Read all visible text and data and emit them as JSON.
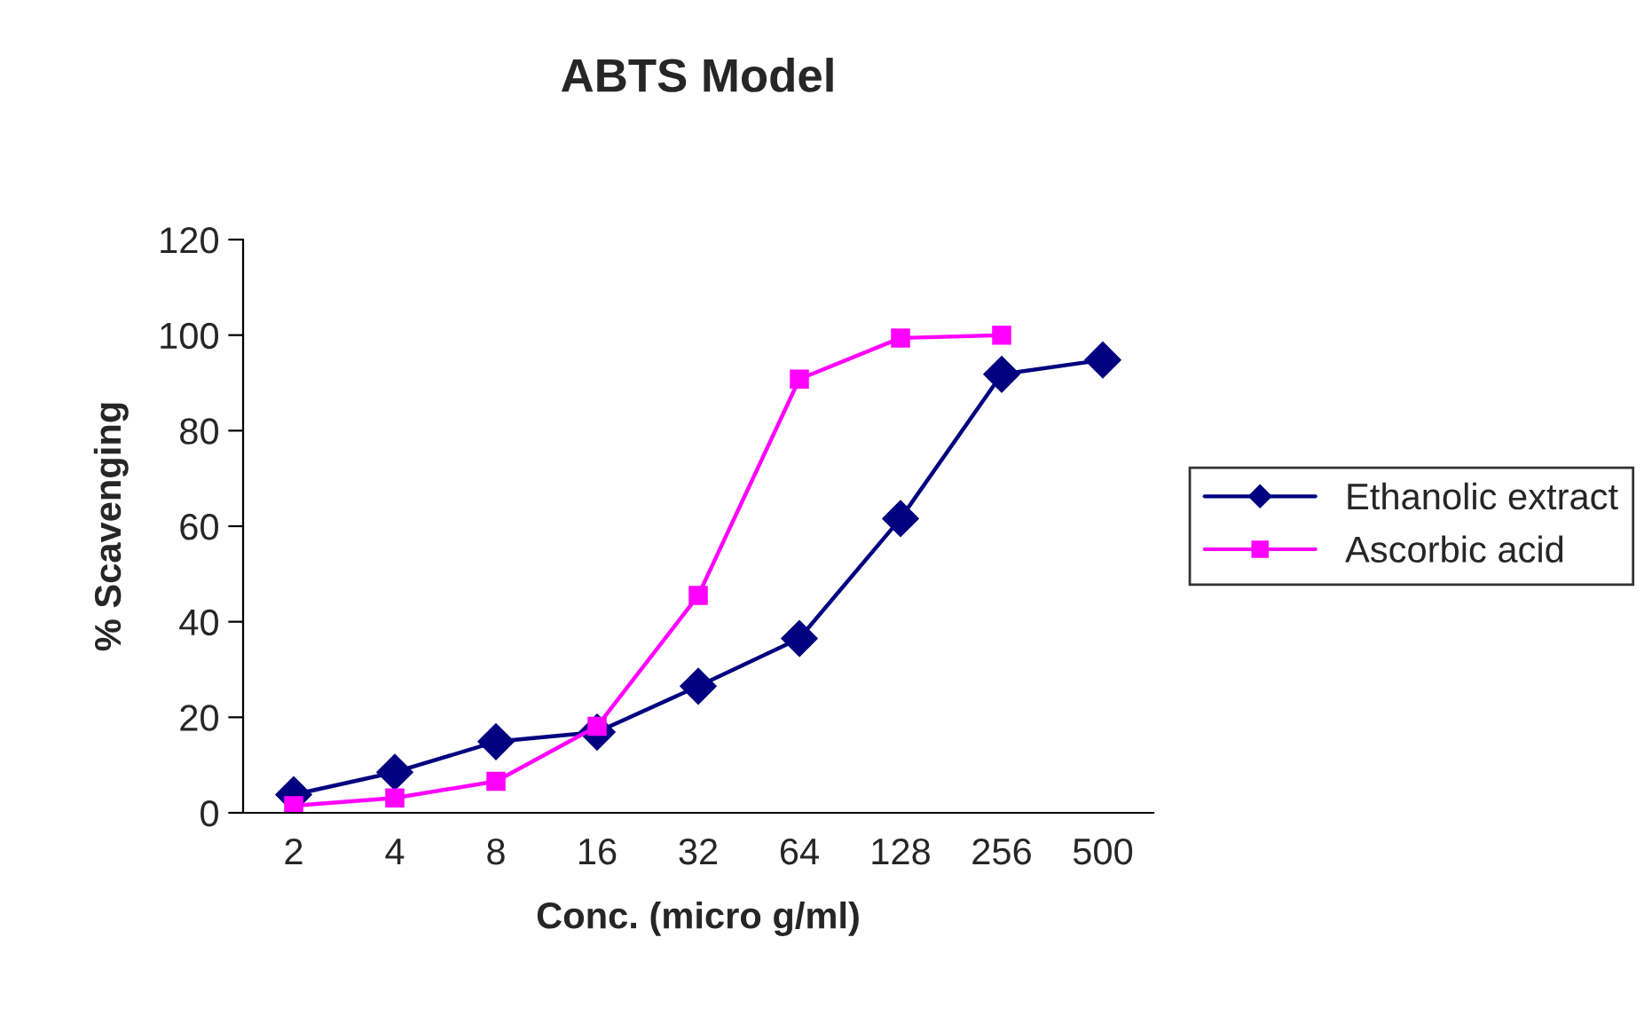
{
  "chart_data": {
    "type": "line",
    "title": "ABTS Model",
    "xlabel": "Conc. (micro g/ml)",
    "ylabel": "% Scavenging",
    "categories": [
      "2",
      "4",
      "8",
      "16",
      "32",
      "64",
      "128",
      "256",
      "500"
    ],
    "series": [
      {
        "name": "Ethanolic extract",
        "color": "#000080",
        "marker": "diamond",
        "values": [
          3.8,
          8.5,
          14.9,
          16.9,
          26.5,
          36.5,
          61.6,
          91.8,
          94.8
        ]
      },
      {
        "name": "Ascorbic acid",
        "color": "#ff00ff",
        "marker": "square",
        "values": [
          1.5,
          3.1,
          6.6,
          18.1,
          45.5,
          90.8,
          99.4,
          100,
          null
        ]
      }
    ],
    "ylim": [
      0,
      120
    ],
    "yticks": [
      0,
      20,
      40,
      60,
      80,
      100,
      120
    ],
    "grid": false,
    "legend": "right",
    "line_style": "solid"
  }
}
